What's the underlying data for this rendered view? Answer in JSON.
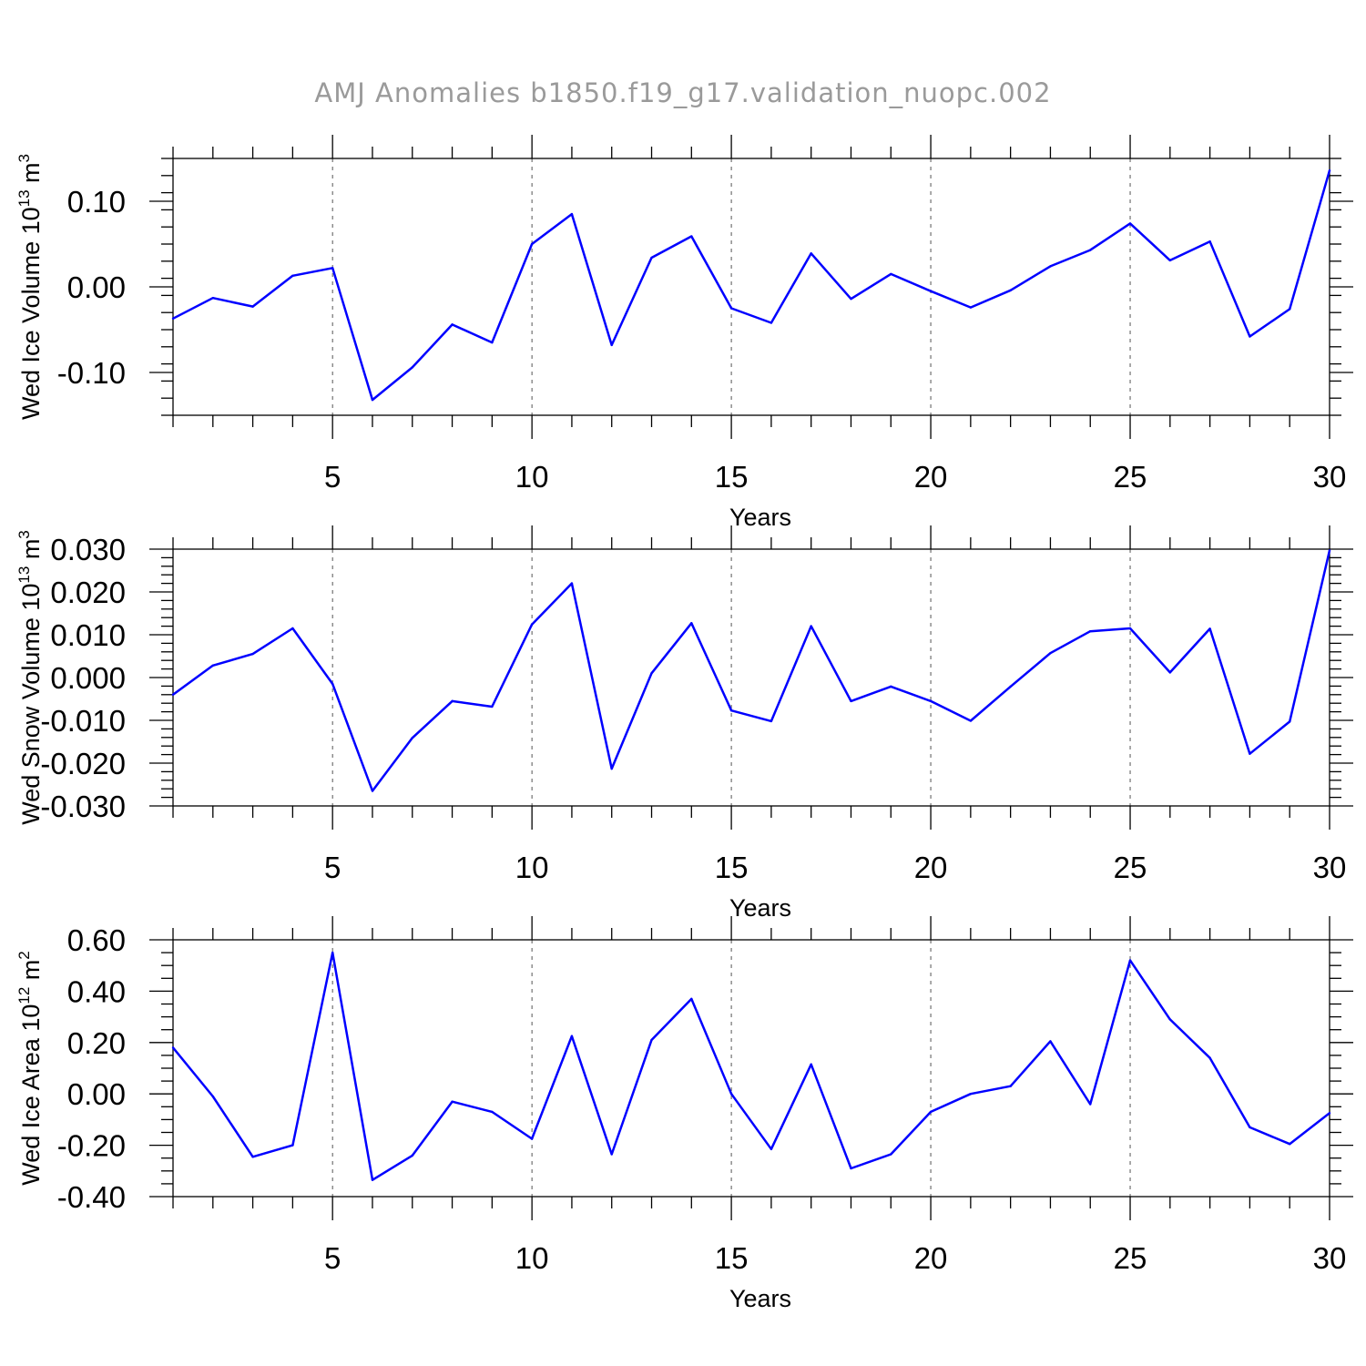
{
  "figure_title": "AMJ Anomalies b1850.f19_g17.validation_nuopc.002",
  "line_color": "#0000ff",
  "chart_data": [
    {
      "type": "line",
      "ylabel_main": "Wed Ice Volume 10",
      "ylabel_exp": "13",
      "ylabel_unit": " m",
      "ylabel_unit_exp": "3",
      "xlabel": "Years",
      "xlim": [
        1,
        30
      ],
      "ylim": [
        -0.15,
        0.15
      ],
      "x_ticks": [
        5,
        10,
        15,
        20,
        25,
        30
      ],
      "y_ticks": [
        -0.1,
        0.0,
        0.1
      ],
      "y_tick_labels": [
        "-0.10",
        "0.00",
        "0.10"
      ],
      "y_minor_step": 0.02,
      "grid_x": true,
      "x": [
        1,
        2,
        3,
        4,
        5,
        6,
        7,
        8,
        9,
        10,
        11,
        12,
        13,
        14,
        15,
        16,
        17,
        18,
        19,
        20,
        21,
        22,
        23,
        24,
        25,
        26,
        27,
        28,
        29,
        30
      ],
      "values": [
        -0.037,
        -0.013,
        -0.023,
        0.013,
        0.022,
        -0.132,
        -0.094,
        -0.044,
        -0.065,
        0.05,
        0.085,
        -0.068,
        0.034,
        0.059,
        -0.025,
        -0.042,
        0.039,
        -0.014,
        0.015,
        -0.005,
        -0.024,
        -0.004,
        0.024,
        0.043,
        0.074,
        0.031,
        0.053,
        -0.058,
        -0.026,
        0.136
      ]
    },
    {
      "type": "line",
      "ylabel_main": "Wed Snow Volume 10",
      "ylabel_exp": "13",
      "ylabel_unit": " m",
      "ylabel_unit_exp": "3",
      "xlabel": "Years",
      "xlim": [
        1,
        30
      ],
      "ylim": [
        -0.03,
        0.03
      ],
      "x_ticks": [
        5,
        10,
        15,
        20,
        25,
        30
      ],
      "y_ticks": [
        -0.03,
        -0.02,
        -0.01,
        0.0,
        0.01,
        0.02,
        0.03
      ],
      "y_tick_labels": [
        "-0.030",
        "-0.020",
        "-0.010",
        "0.000",
        "0.010",
        "0.020",
        "0.030"
      ],
      "y_minor_step": 0.002,
      "grid_x": true,
      "x": [
        1,
        2,
        3,
        4,
        5,
        6,
        7,
        8,
        9,
        10,
        11,
        12,
        13,
        14,
        15,
        16,
        17,
        18,
        19,
        20,
        21,
        22,
        23,
        24,
        25,
        26,
        27,
        28,
        29,
        30
      ],
      "values": [
        -0.004,
        0.0028,
        0.0055,
        0.0115,
        -0.0015,
        -0.0265,
        -0.0141,
        -0.0055,
        -0.0068,
        0.0124,
        0.022,
        -0.0213,
        0.001,
        0.0127,
        -0.0077,
        -0.0102,
        0.012,
        -0.0055,
        -0.0021,
        -0.0055,
        -0.0101,
        -0.0021,
        0.0057,
        0.0108,
        0.0115,
        0.0012,
        0.0114,
        -0.0178,
        -0.0103,
        0.0297
      ]
    },
    {
      "type": "line",
      "ylabel_main": "Wed Ice Area 10",
      "ylabel_exp": "12",
      "ylabel_unit": " m",
      "ylabel_unit_exp": "2",
      "xlabel": "Years",
      "xlim": [
        1,
        30
      ],
      "ylim": [
        -0.4,
        0.6
      ],
      "x_ticks": [
        5,
        10,
        15,
        20,
        25,
        30
      ],
      "y_ticks": [
        -0.4,
        -0.2,
        0.0,
        0.2,
        0.4,
        0.6
      ],
      "y_tick_labels": [
        "-0.40",
        "-0.20",
        "0.00",
        "0.20",
        "0.40",
        "0.60"
      ],
      "y_minor_step": 0.05,
      "grid_x": true,
      "x": [
        1,
        2,
        3,
        4,
        5,
        6,
        7,
        8,
        9,
        10,
        11,
        12,
        13,
        14,
        15,
        16,
        17,
        18,
        19,
        20,
        21,
        22,
        23,
        24,
        25,
        26,
        27,
        28,
        29,
        30
      ],
      "values": [
        0.18,
        -0.01,
        -0.245,
        -0.2,
        0.55,
        -0.335,
        -0.24,
        -0.03,
        -0.07,
        -0.175,
        0.225,
        -0.235,
        0.21,
        0.37,
        0.0,
        -0.215,
        0.115,
        -0.29,
        -0.235,
        -0.07,
        0.0,
        0.03,
        0.205,
        -0.04,
        0.52,
        0.29,
        0.14,
        -0.13,
        -0.195,
        -0.075
      ]
    }
  ]
}
